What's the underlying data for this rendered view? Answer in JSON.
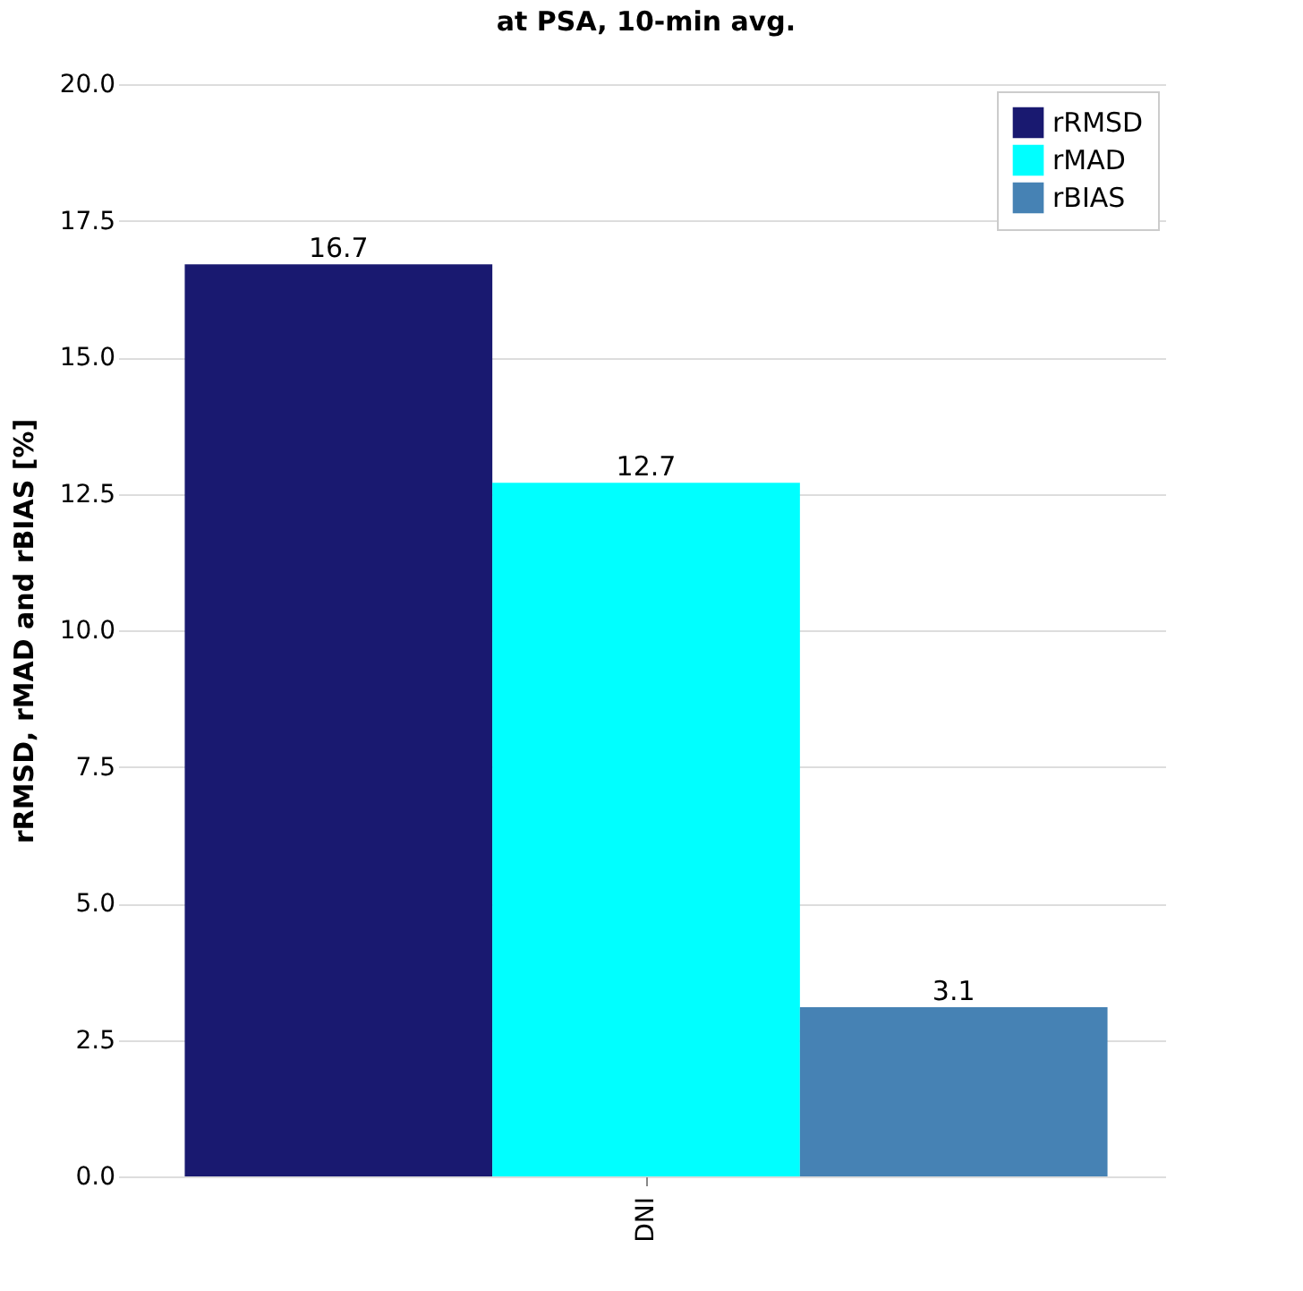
{
  "chart_data": {
    "type": "bar",
    "title": "at PSA, 10-min avg.",
    "ylabel": "rRMSD, rMAD and rBIAS [%]",
    "categories": [
      "DNI"
    ],
    "series": [
      {
        "name": "rRMSD",
        "color": "#191970",
        "values": [
          16.7
        ]
      },
      {
        "name": "rMAD",
        "color": "#00ffff",
        "values": [
          12.7
        ]
      },
      {
        "name": "rBIAS",
        "color": "#4682b4",
        "values": [
          3.1
        ]
      }
    ],
    "ylim": [
      0,
      20
    ],
    "yticks": [
      {
        "value": 0,
        "label": "0.0"
      },
      2.5,
      {
        "value": 5,
        "label": "5.0"
      },
      7.5,
      {
        "value": 10,
        "label": "10.0"
      },
      12.5,
      {
        "value": 15,
        "label": "15.0"
      },
      17.5,
      {
        "value": 20,
        "label": "20.0"
      }
    ],
    "grid": "y",
    "legend": "top right",
    "data_labels": true
  }
}
